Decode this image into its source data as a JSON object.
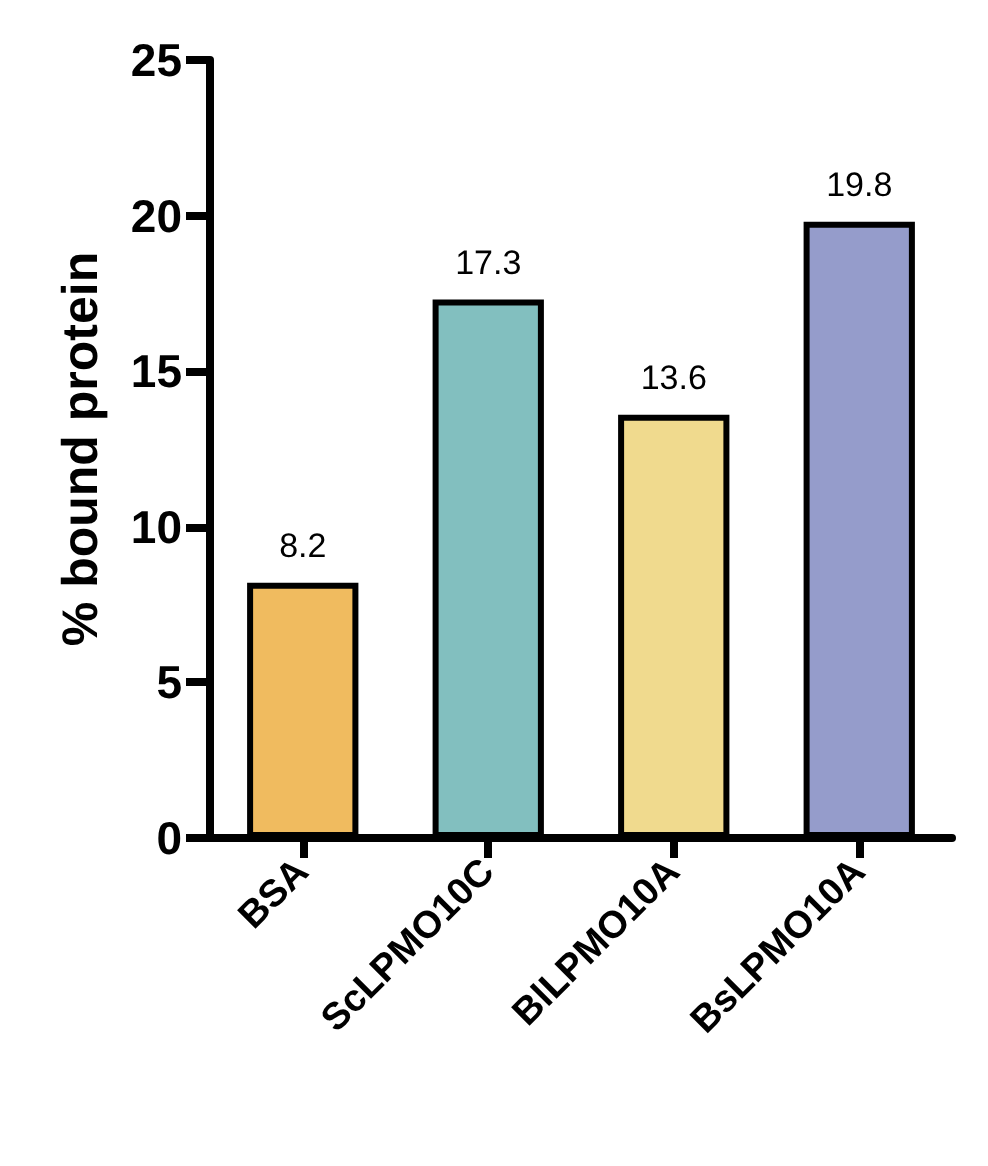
{
  "chart_data": {
    "type": "bar",
    "ylabel": "% bound protein",
    "categories": [
      "BSA",
      "ScLPMO10C",
      "BlLPMO10A",
      "BsLPMO10A"
    ],
    "values": [
      8.2,
      17.3,
      13.6,
      19.8
    ],
    "colors": [
      "#f0bb5f",
      "#82bfbf",
      "#f0da8e",
      "#959ccb"
    ],
    "ylim": [
      0,
      25
    ],
    "yticks": [
      0,
      5,
      10,
      15,
      20,
      25
    ],
    "grid": false,
    "data_labels": true
  }
}
